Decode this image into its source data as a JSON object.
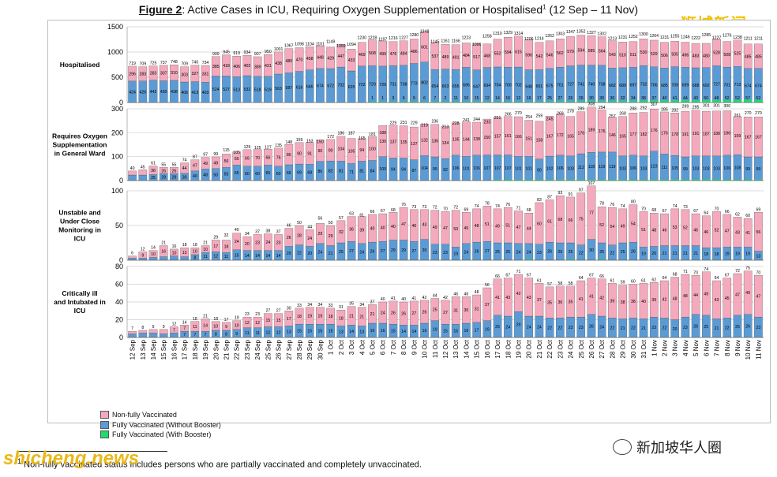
{
  "figure": {
    "label": "Figure 2",
    "title": ": Active Cases in ICU, Requiring Oxygen Supplementation or Hospitalised",
    "superscript": "1",
    "range": " (12 Sep – 11 Nov)"
  },
  "watermarks": {
    "top_right": "狮城新闻",
    "bottom_right": "新加坡华人圈",
    "bottom_left": "shicheng.news"
  },
  "footnote": {
    "marker": "1",
    "text": " Non-fully vaccinated status includes persons who are partially vaccinated and completely unvaccinated."
  },
  "colors": {
    "non_fully": "#f4a9bd",
    "without_booster": "#5b9bd5",
    "with_booster": "#1fdc6e",
    "grid": "#cfcfcf",
    "frame": "#bdbdbd"
  },
  "chart_data": {
    "type": "bar",
    "stacked": true,
    "grid": true,
    "legend_position": "bottom-left",
    "categories": [
      "12 Sep",
      "13 Sep",
      "14 Sep",
      "15 Sep",
      "16 Sep",
      "17 Sep",
      "18 Sep",
      "19 Sep",
      "20 Sep",
      "21 Sep",
      "22 Sep",
      "23 Sep",
      "24 Sep",
      "25 Sep",
      "26 Sep",
      "27 Sep",
      "28 Sep",
      "29 Sep",
      "30 Sep",
      "1 Oct",
      "2 Oct",
      "3 Oct",
      "4 Oct",
      "5 Oct",
      "6 Oct",
      "7 Oct",
      "8 Oct",
      "9 Oct",
      "10 Oct",
      "11 Oct",
      "12 Oct",
      "13 Oct",
      "14 Oct",
      "15 Oct",
      "16 Oct",
      "17 Oct",
      "18 Oct",
      "19 Oct",
      "20 Oct",
      "21 Oct",
      "22 Oct",
      "23 Oct",
      "24 Oct",
      "25 Oct",
      "26 Oct",
      "27 Oct",
      "28 Oct",
      "29 Oct",
      "30 Oct",
      "31 Oct",
      "1 Nov",
      "2 Nov",
      "3 Nov",
      "4 Nov",
      "5 Nov",
      "6 Nov",
      "7 Nov",
      "8 Nov",
      "9 Nov",
      "10 Nov",
      "11 Nov"
    ],
    "legend": [
      {
        "name": "Non-fully Vaccinated",
        "color": "#f4a9bd"
      },
      {
        "name": "Fully Vaccinated (Without Booster)",
        "color": "#5b9bd5"
      },
      {
        "name": "Fully Vaccinated (With Booster)",
        "color": "#1fdc6e"
      }
    ],
    "panels": [
      {
        "label": "Hospitalised",
        "ylim": [
          0,
          1500
        ],
        "yticks": [
          0,
          500,
          1000,
          1500
        ],
        "totals": [
          719,
          709,
          725,
          737,
          748,
          709,
          740,
          734,
          909,
          945,
          919,
          934,
          907,
          950,
          1001,
          1067,
          1098,
          1104,
          1101,
          1149,
          1059,
          1094,
          1230,
          1228,
          1197,
          1216,
          1227,
          1280,
          1348,
          1145,
          1161,
          1166,
          1223,
          1096,
          1258,
          1310,
          1329,
          1314,
          1206,
          1214,
          1262,
          1303,
          1347,
          1352,
          1327,
          1302,
          1213,
          1231,
          1252,
          1300,
          1264,
          1231,
          1255,
          1246,
          1222,
          1285,
          1227,
          1276,
          1238,
          1211,
          1211
        ],
        "without_booster": [
          424,
          426,
          442,
          430,
          438,
          406,
          413,
          403,
          524,
          527,
          513,
          532,
          518,
          519,
          563,
          587,
          616,
          646,
          674,
          672,
          702,
          625,
          722,
          729,
          720,
          731,
          738,
          773,
          802,
          654,
          663,
          655,
          696,
          647,
          694,
          704,
          700,
          702,
          648,
          651,
          675,
          701,
          727,
          741,
          740,
          738,
          682,
          689,
          697,
          732,
          706,
          685,
          709,
          699,
          688,
          692,
          727,
          701,
          713,
          674,
          674
        ],
        "non_fully": [
          296,
          283,
          283,
          307,
          310,
          303,
          327,
          331,
          385,
          418,
          406,
          402,
          389,
          431,
          438,
          480,
          470,
          458,
          448,
          429,
          447,
          433,
          469,
          508,
          499,
          476,
          484,
          486,
          601,
          537,
          489,
          491,
          484,
          517,
          468,
          552,
          594,
          615,
          596,
          542,
          546,
          562,
          579,
          594,
          585,
          564,
          543,
          510,
          511,
          530,
          529,
          506,
          505,
          496,
          483,
          480,
          528,
          508,
          525,
          485,
          485
        ],
        "with_booster": [
          0,
          0,
          0,
          0,
          0,
          0,
          0,
          0,
          0,
          0,
          0,
          0,
          0,
          0,
          0,
          0,
          0,
          0,
          0,
          0,
          0,
          0,
          0,
          1,
          1,
          3,
          6,
          9,
          6,
          7,
          2,
          11,
          10,
          15,
          12,
          14,
          16,
          12,
          16,
          17,
          25,
          27,
          26,
          26,
          30,
          30,
          30,
          32,
          34,
          38,
          37,
          40,
          41,
          44,
          43,
          50,
          48,
          52,
          52,
          57,
          52
        ]
      },
      {
        "label": "Requires Oxygen Supplementation in General Ward",
        "ylim": [
          0,
          300
        ],
        "yticks": [
          0,
          100,
          200,
          300
        ],
        "totals": [
          40,
          45,
          61,
          55,
          55,
          74,
          87,
          97,
          99,
          115,
          105,
          129,
          125,
          127,
          135,
          148,
          159,
          153,
          150,
          172,
          186,
          187,
          165,
          181,
          188,
          229,
          231,
          229,
          219,
          236,
          213,
          228,
          241,
          244,
          233,
          251,
          266,
          270,
          254,
          259,
          245,
          269,
          278,
          289,
          308,
          294,
          257,
          268,
          288,
          292,
          307,
          285,
          282,
          299,
          295,
          301,
          301,
          300,
          261,
          270,
          270
        ],
        "without_booster": [
          23,
          23,
          25,
          29,
          29,
          30,
          40,
          48,
          50,
          55,
          65,
          60,
          60,
          65,
          60,
          66,
          69,
          68,
          80,
          82,
          81,
          71,
          81,
          84,
          100,
          94,
          94,
          87,
          104,
          99,
          92,
          106,
          101,
          106,
          107,
          107,
          107,
          101,
          101,
          90,
          102,
          106,
          103,
          112,
          118,
          119,
          119,
          103,
          106,
          103,
          123,
          111,
          105,
          99,
          103,
          103,
          103,
          106,
          108,
          99,
          99
        ],
        "non_fully": [
          17,
          22,
          36,
          26,
          26,
          44,
          47,
          49,
          49,
          56,
          55,
          69,
          70,
          66,
          76,
          85,
          90,
          91,
          90,
          90,
          104,
          105,
          94,
          100,
          130,
          137,
          135,
          137,
          132,
          136,
          134,
          135,
          144,
          138,
          150,
          157,
          161,
          166,
          151,
          158,
          167,
          172,
          165,
          176,
          189,
          176,
          146,
          165,
          177,
          182,
          176,
          176,
          178,
          191,
          191,
          187,
          188,
          186,
          159,
          167,
          167
        ],
        "with_booster": [
          0,
          0,
          0,
          0,
          0,
          0,
          0,
          0,
          0,
          0,
          0,
          0,
          0,
          0,
          0,
          0,
          0,
          0,
          0,
          0,
          0,
          0,
          0,
          0,
          0,
          0,
          0,
          0,
          0,
          0,
          0,
          0,
          0,
          0,
          0,
          1,
          2,
          2,
          1,
          2,
          3,
          3,
          3,
          2,
          3,
          3,
          3,
          3,
          3,
          3,
          3,
          4,
          5,
          4,
          5,
          5,
          5,
          4,
          4,
          4,
          4
        ]
      },
      {
        "label": "Unstable and Under Close Monitoring in ICU",
        "ylim": [
          0,
          100
        ],
        "yticks": [
          0,
          50,
          100
        ],
        "totals": [
          6,
          12,
          14,
          21,
          16,
          18,
          18,
          21,
          29,
          32,
          40,
          34,
          37,
          38,
          37,
          46,
          50,
          44,
          56,
          50,
          57,
          63,
          61,
          66,
          67,
          68,
          76,
          73,
          73,
          72,
          70,
          72,
          69,
          74,
          78,
          74,
          76,
          71,
          68,
          83,
          87,
          93,
          91,
          97,
          107,
          78,
          76,
          74,
          80,
          70,
          68,
          67,
          74,
          73,
          67,
          64,
          70,
          66,
          62,
          60,
          69
        ],
        "without_booster": [
          3,
          3,
          4,
          5,
          6,
          5,
          8,
          11,
          12,
          11,
          15,
          14,
          14,
          14,
          14,
          20,
          22,
          20,
          24,
          21,
          25,
          27,
          24,
          26,
          27,
          29,
          29,
          27,
          30,
          23,
          23,
          19,
          24,
          26,
          27,
          25,
          25,
          24,
          24,
          23,
          26,
          25,
          25,
          22,
          30,
          25,
          22,
          25,
          26,
          19,
          20,
          21,
          21,
          21,
          21,
          18,
          18,
          19,
          19,
          19,
          13
        ],
        "non_fully": [
          3,
          9,
          10,
          16,
          10,
          13,
          10,
          10,
          17,
          18,
          24,
          20,
          23,
          24,
          23,
          26,
          28,
          24,
          29,
          29,
          32,
          36,
          39,
          40,
          40,
          40,
          47,
          46,
          43,
          49,
          47,
          53,
          45,
          48,
          51,
          49,
          51,
          47,
          44,
          60,
          61,
          68,
          66,
          75,
          77,
          52,
          54,
          49,
          54,
          51,
          48,
          46,
          53,
          52,
          46,
          46,
          52,
          47,
          43,
          41,
          56
        ],
        "with_booster": [
          0,
          0,
          0,
          0,
          0,
          0,
          0,
          0,
          0,
          0,
          0,
          0,
          0,
          0,
          0,
          0,
          0,
          0,
          0,
          0,
          0,
          0,
          0,
          0,
          0,
          0,
          0,
          0,
          0,
          0,
          0,
          0,
          0,
          0,
          0,
          0,
          0,
          0,
          1,
          0,
          0,
          0,
          1,
          0,
          0,
          1,
          0,
          0,
          0,
          0,
          0,
          0,
          0,
          0,
          0,
          0,
          0,
          0,
          0,
          0,
          0
        ]
      },
      {
        "label": "Critically ill and Intubated in ICU",
        "ylim": [
          0,
          80
        ],
        "yticks": [
          0,
          20,
          40,
          60,
          80
        ],
        "totals": [
          7,
          8,
          9,
          9,
          12,
          14,
          18,
          21,
          18,
          17,
          19,
          23,
          23,
          27,
          27,
          30,
          33,
          34,
          34,
          33,
          31,
          35,
          34,
          37,
          40,
          41,
          40,
          41,
          42,
          44,
          42,
          46,
          46,
          48,
          56,
          66,
          67,
          71,
          67,
          61,
          57,
          58,
          58,
          64,
          67,
          66,
          61,
          59,
          60,
          61,
          62,
          64,
          68,
          71,
          70,
          74,
          64,
          67,
          72,
          75,
          70
        ],
        "without_booster": [
          4,
          5,
          5,
          4,
          5,
          7,
          7,
          7,
          8,
          8,
          9,
          11,
          11,
          12,
          12,
          13,
          15,
          15,
          15,
          15,
          13,
          14,
          13,
          16,
          16,
          15,
          14,
          14,
          16,
          19,
          15,
          15,
          16,
          17,
          19,
          25,
          24,
          29,
          24,
          24,
          22,
          22,
          23,
          23,
          26,
          24,
          22,
          21,
          22,
          21,
          23,
          22,
          20,
          23,
          26,
          25,
          21,
          22,
          25,
          26,
          23
        ],
        "non_fully": [
          3,
          3,
          4,
          5,
          7,
          7,
          11,
          14,
          10,
          9,
          10,
          12,
          12,
          15,
          15,
          17,
          18,
          19,
          19,
          18,
          18,
          21,
          21,
          21,
          24,
          26,
          26,
          27,
          26,
          25,
          27,
          31,
          30,
          31,
          37,
          41,
          43,
          42,
          43,
          37,
          35,
          36,
          35,
          41,
          41,
          42,
          39,
          38,
          38,
          40,
          39,
          42,
          48,
          48,
          44,
          49,
          43,
          45,
          47,
          49,
          47
        ],
        "with_booster": [
          0,
          0,
          0,
          0,
          0,
          0,
          0,
          0,
          0,
          0,
          0,
          0,
          0,
          0,
          0,
          0,
          0,
          0,
          0,
          0,
          0,
          0,
          0,
          0,
          0,
          0,
          0,
          0,
          0,
          0,
          0,
          0,
          0,
          0,
          0,
          0,
          0,
          0,
          0,
          0,
          0,
          0,
          0,
          0,
          0,
          0,
          0,
          0,
          0,
          0,
          0,
          0,
          0,
          0,
          0,
          0,
          0,
          0,
          0,
          0,
          0
        ]
      }
    ]
  }
}
